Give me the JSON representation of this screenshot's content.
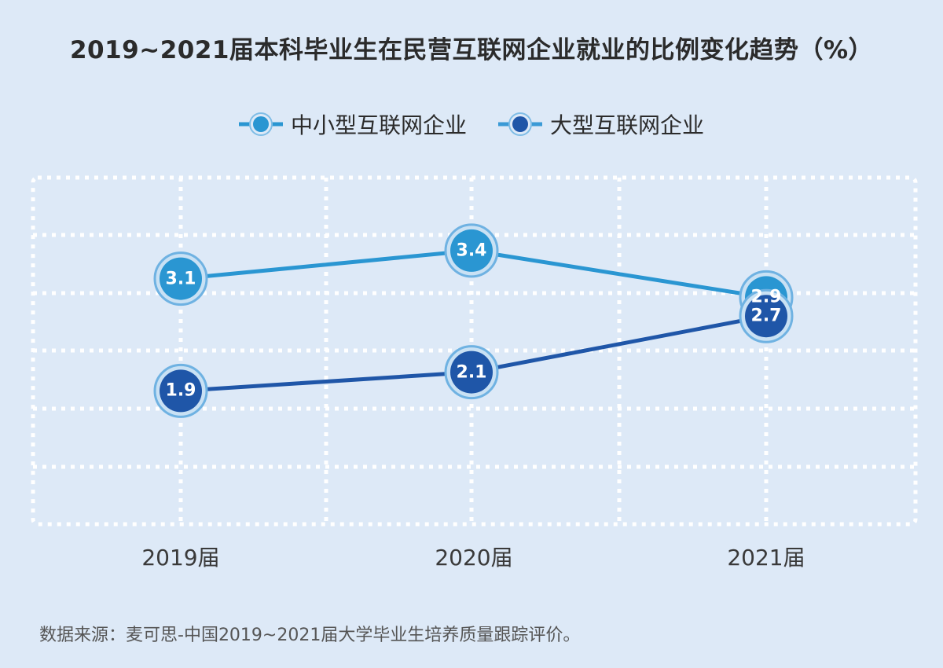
{
  "title": "2019~2021届本科毕业生在民营互联网企业就业的比例变化趋势（%）",
  "legend": [
    {
      "label": "中小型互联网企业",
      "color": "#2a96d2",
      "icon": "line-circle-marker-icon"
    },
    {
      "label": "大型互联网企业",
      "color": "#1f56a8",
      "icon": "line-circle-marker-icon"
    }
  ],
  "x_labels": [
    "2019届",
    "2020届",
    "2021届"
  ],
  "source": "数据来源：麦可思-中国2019~2021届大学毕业生培养质量跟踪评价。",
  "chart_data": {
    "type": "line",
    "title": "2019~2021届本科毕业生在民营互联网企业就业的比例变化趋势（%）",
    "xlabel": "",
    "ylabel": "%",
    "categories": [
      "2019届",
      "2020届",
      "2021届"
    ],
    "series": [
      {
        "name": "中小型互联网企业",
        "values": [
          3.1,
          3.4,
          2.9
        ],
        "color": "#2a96d2"
      },
      {
        "name": "大型互联网企业",
        "values": [
          1.9,
          2.1,
          2.7
        ],
        "color": "#1f56a8"
      }
    ],
    "data_labels": true,
    "grid": "dotted white, 6 columns x 6 rows",
    "legend_position": "top",
    "y_axis_visible": false
  }
}
